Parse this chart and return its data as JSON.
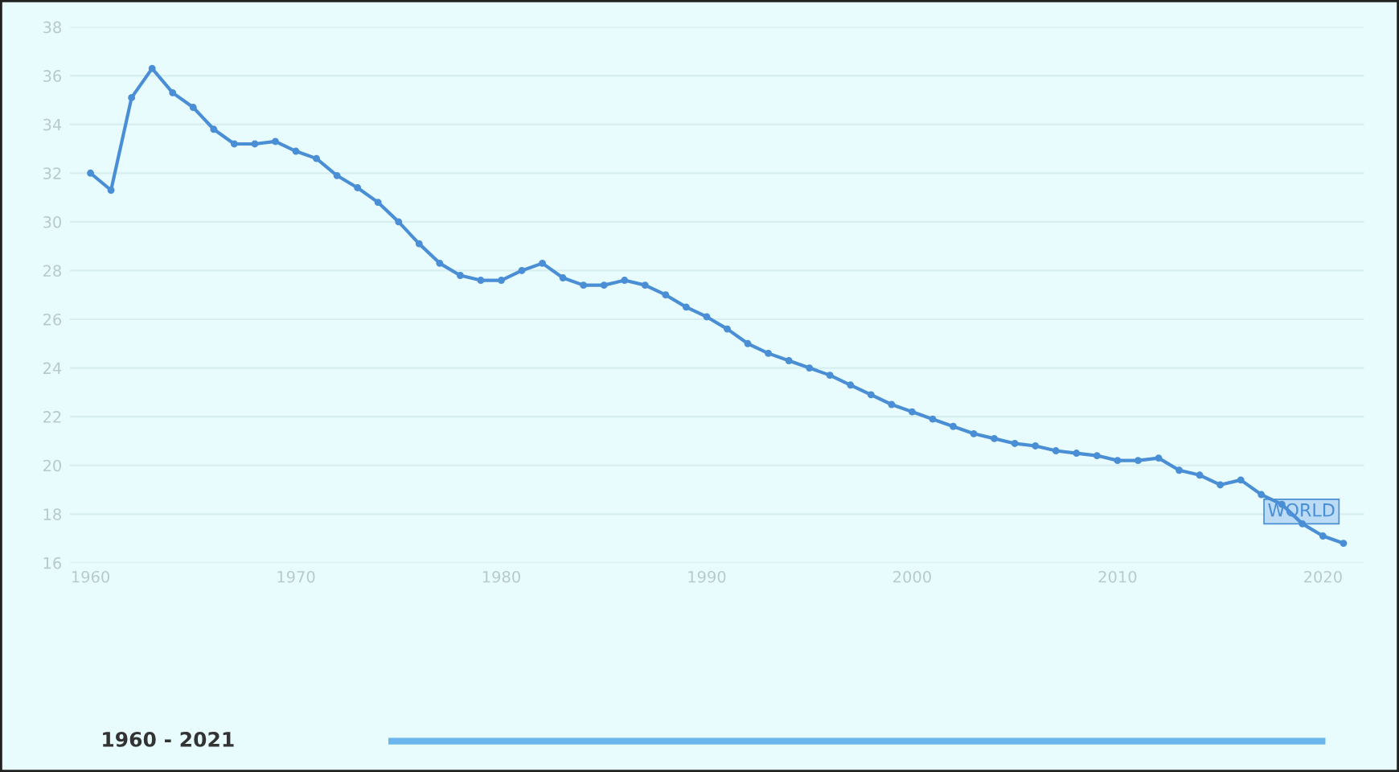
{
  "chart_data": {
    "type": "line",
    "x": [
      1960,
      1961,
      1962,
      1963,
      1964,
      1965,
      1966,
      1967,
      1968,
      1969,
      1970,
      1971,
      1972,
      1973,
      1974,
      1975,
      1976,
      1977,
      1978,
      1979,
      1980,
      1981,
      1982,
      1983,
      1984,
      1985,
      1986,
      1987,
      1988,
      1989,
      1990,
      1991,
      1992,
      1993,
      1994,
      1995,
      1996,
      1997,
      1998,
      1999,
      2000,
      2001,
      2002,
      2003,
      2004,
      2005,
      2006,
      2007,
      2008,
      2009,
      2010,
      2011,
      2012,
      2013,
      2014,
      2015,
      2016,
      2017,
      2018,
      2019,
      2020,
      2021
    ],
    "series": [
      {
        "name": "WORLD",
        "color": "#4a8fd6",
        "values": [
          32.0,
          31.3,
          35.1,
          36.3,
          35.3,
          34.7,
          33.8,
          33.2,
          33.2,
          33.3,
          32.9,
          32.6,
          31.9,
          31.4,
          30.8,
          30.0,
          29.1,
          28.3,
          27.8,
          27.6,
          27.6,
          28.0,
          28.3,
          27.7,
          27.4,
          27.4,
          27.6,
          27.4,
          27.0,
          26.5,
          26.1,
          25.6,
          25.0,
          24.6,
          24.3,
          24.0,
          23.7,
          23.3,
          22.9,
          22.5,
          22.2,
          21.9,
          21.6,
          21.3,
          21.1,
          20.9,
          20.8,
          20.6,
          20.5,
          20.4,
          20.2,
          20.2,
          20.3,
          19.8,
          19.6,
          19.2,
          19.4,
          18.8,
          18.4,
          17.6,
          17.1,
          16.8
        ]
      }
    ],
    "xlim": [
      1959,
      2022
    ],
    "xticks": [
      1960,
      1970,
      1980,
      1990,
      2000,
      2010,
      2020
    ],
    "ylim": [
      16,
      38
    ],
    "yticks": [
      16,
      18,
      20,
      22,
      24,
      26,
      28,
      30,
      32,
      34,
      36,
      38
    ],
    "grid": "y",
    "marker": "circle",
    "line_style": "solid",
    "legend": false,
    "annotations": [
      "1960 - 2021"
    ]
  }
}
